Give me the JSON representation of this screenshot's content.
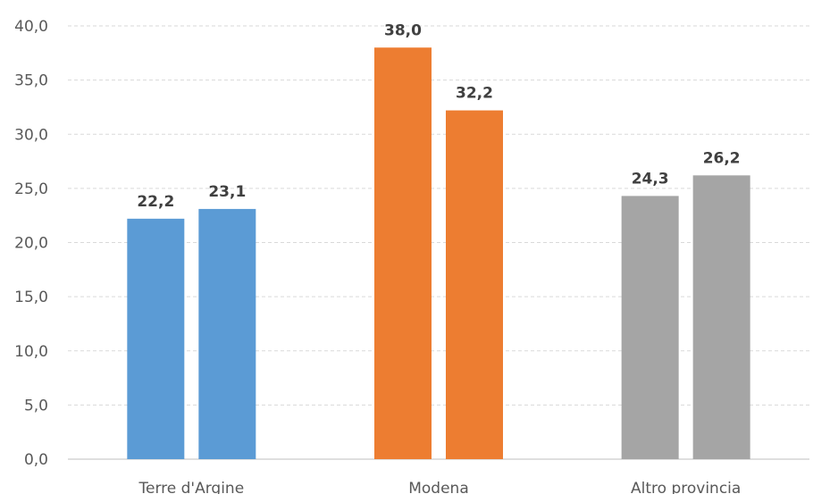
{
  "chart_data": {
    "type": "bar",
    "categories": [
      "Terre d'Argine",
      "Modena",
      "Altro provincia"
    ],
    "series": [
      {
        "values": [
          22.2,
          38.0,
          24.3
        ]
      },
      {
        "values": [
          23.1,
          32.2,
          26.2
        ]
      }
    ],
    "data_labels": [
      [
        "22,2",
        "38,0",
        "24,3"
      ],
      [
        "23,1",
        "32,2",
        "26,2"
      ]
    ],
    "category_colors": [
      "#5b9bd5",
      "#ed7d31",
      "#a5a5a5"
    ],
    "ylim": [
      0,
      40
    ],
    "yticks": [
      0,
      5,
      10,
      15,
      20,
      25,
      30,
      35,
      40
    ],
    "ytick_labels": [
      "0,0",
      "5,0",
      "10,0",
      "15,0",
      "20,0",
      "25,0",
      "30,0",
      "35,0",
      "40,0"
    ],
    "grid": true,
    "legend": "none",
    "title": "",
    "xlabel": "",
    "ylabel": ""
  }
}
